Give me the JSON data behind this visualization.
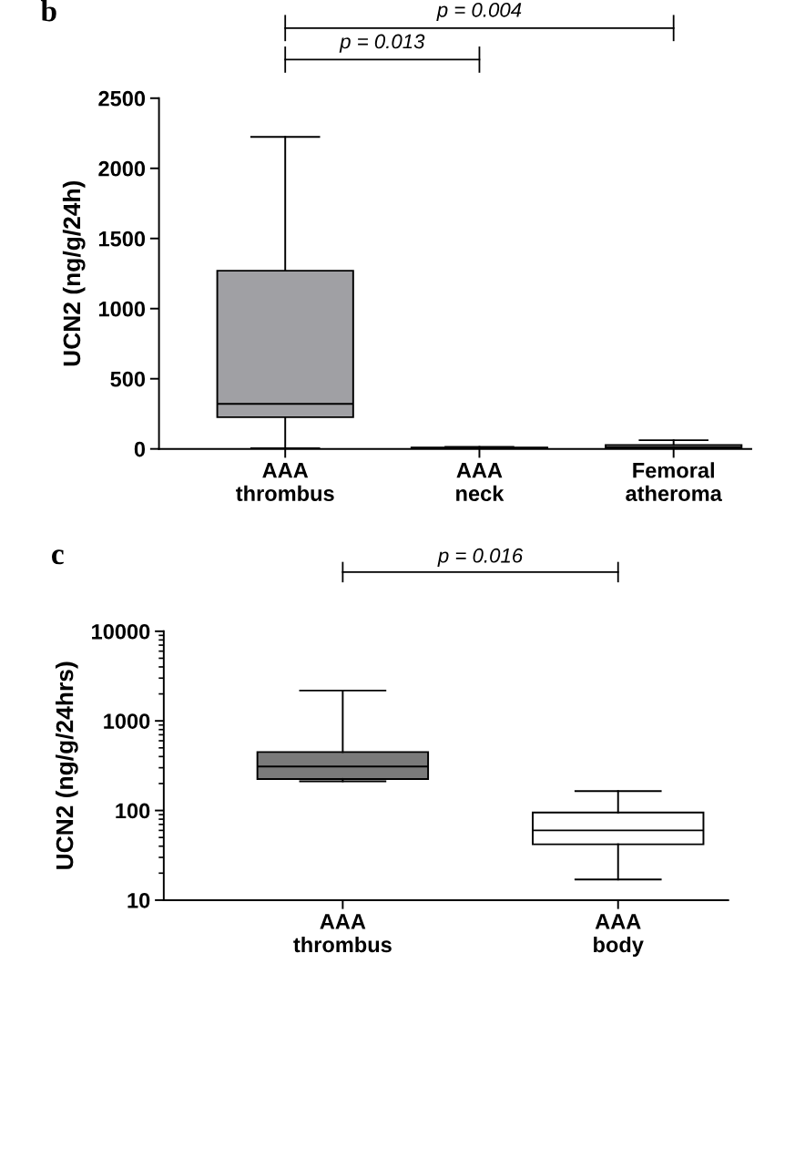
{
  "chart_data": [
    {
      "type": "box",
      "title": "b",
      "ylabel": "UCN2 (ng/g/24h)",
      "categories": [
        "AAA\nthrombus",
        "AAA\nneck",
        "Femoral\natheroma"
      ],
      "ylim": [
        0,
        2500
      ],
      "yticks": [
        0,
        500,
        1000,
        1500,
        2000,
        2500
      ],
      "grid": false,
      "log": false,
      "boxes": [
        {
          "low": 5,
          "q1": 226,
          "median": 321,
          "q3": 1270,
          "high": 2224
        },
        {
          "low": 2,
          "q1": 4,
          "median": 6,
          "q3": 10,
          "high": 14
        },
        {
          "low": 1,
          "q1": 8,
          "median": 15,
          "q3": 28,
          "high": 62
        }
      ],
      "colors": [
        "#a0a0a4",
        "#303030",
        "#ffffff"
      ],
      "annotations": [
        "p = 0.004",
        "p = 0.013"
      ]
    },
    {
      "type": "box",
      "title": "c",
      "ylabel": "UCN2 (ng/g/24hrs)",
      "categories": [
        "AAA\nthrombus",
        "AAA\nbody"
      ],
      "ylim": [
        10,
        10000
      ],
      "yticks": [
        10,
        100,
        1000,
        10000
      ],
      "grid": false,
      "log": true,
      "boxes": [
        {
          "low": 212,
          "q1": 225,
          "median": 310,
          "q3": 449,
          "high": 2180
        },
        {
          "low": 17,
          "q1": 42,
          "median": 60,
          "q3": 95,
          "high": 165
        }
      ],
      "colors": [
        "#7a7a7a",
        "#ffffff"
      ],
      "annotations": [
        "p = 0.016"
      ]
    }
  ]
}
